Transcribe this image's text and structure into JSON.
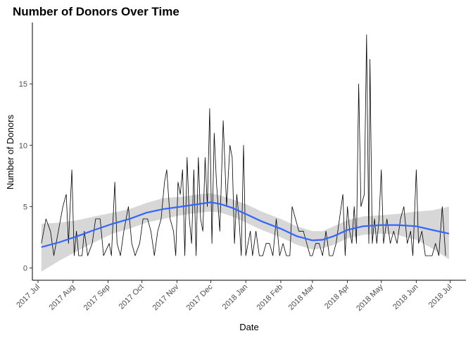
{
  "chart_data": {
    "type": "line",
    "title": "Number of Donors Over Time",
    "xlabel": "Date",
    "ylabel": "Number of Donors",
    "x_axis_type": "date",
    "xlim": [
      "2017-06-26",
      "2018-07-15"
    ],
    "ylim": [
      -1.0,
      20.0
    ],
    "grid": false,
    "x_ticks": [
      {
        "date": "2017-07-01",
        "label": "2017 Jul"
      },
      {
        "date": "2017-08-01",
        "label": "2017 Aug"
      },
      {
        "date": "2017-09-01",
        "label": "2017 Sep"
      },
      {
        "date": "2017-10-01",
        "label": "2017 Oct"
      },
      {
        "date": "2017-11-01",
        "label": "2017 Nov"
      },
      {
        "date": "2017-12-01",
        "label": "2017 Dec"
      },
      {
        "date": "2018-01-01",
        "label": "2018 Jan"
      },
      {
        "date": "2018-02-01",
        "label": "2018 Feb"
      },
      {
        "date": "2018-03-01",
        "label": "2018 Mar"
      },
      {
        "date": "2018-04-01",
        "label": "2018 Apr"
      },
      {
        "date": "2018-05-01",
        "label": "2018 May"
      },
      {
        "date": "2018-06-01",
        "label": "2018 Jun"
      },
      {
        "date": "2018-07-01",
        "label": "2018 Jul"
      }
    ],
    "y_ticks": [
      {
        "value": 0,
        "label": "0"
      },
      {
        "value": 5,
        "label": "5"
      },
      {
        "value": 10,
        "label": "10"
      },
      {
        "value": 15,
        "label": "15"
      }
    ],
    "series": [
      {
        "kind": "raw",
        "color": "#000000",
        "points": [
          [
            "2017-07-04",
            2
          ],
          [
            "2017-07-08",
            4
          ],
          [
            "2017-07-12",
            3
          ],
          [
            "2017-07-15",
            1
          ],
          [
            "2017-07-19",
            3
          ],
          [
            "2017-07-23",
            5
          ],
          [
            "2017-07-26",
            6
          ],
          [
            "2017-07-28",
            2
          ],
          [
            "2017-07-31",
            8
          ],
          [
            "2017-08-02",
            1
          ],
          [
            "2017-08-04",
            3
          ],
          [
            "2017-08-06",
            1
          ],
          [
            "2017-08-09",
            1
          ],
          [
            "2017-08-11",
            3
          ],
          [
            "2017-08-14",
            1
          ],
          [
            "2017-08-18",
            2
          ],
          [
            "2017-08-21",
            4
          ],
          [
            "2017-08-25",
            4
          ],
          [
            "2017-08-28",
            1
          ],
          [
            "2017-09-02",
            2
          ],
          [
            "2017-09-04",
            1
          ],
          [
            "2017-09-07",
            7
          ],
          [
            "2017-09-09",
            2
          ],
          [
            "2017-09-12",
            1
          ],
          [
            "2017-09-15",
            3
          ],
          [
            "2017-09-19",
            5
          ],
          [
            "2017-09-22",
            2
          ],
          [
            "2017-09-25",
            1
          ],
          [
            "2017-09-29",
            2
          ],
          [
            "2017-10-02",
            4
          ],
          [
            "2017-10-06",
            4
          ],
          [
            "2017-10-09",
            3
          ],
          [
            "2017-10-12",
            1
          ],
          [
            "2017-10-15",
            3
          ],
          [
            "2017-10-18",
            4
          ],
          [
            "2017-10-21",
            7
          ],
          [
            "2017-10-23",
            8
          ],
          [
            "2017-10-26",
            4
          ],
          [
            "2017-10-29",
            3
          ],
          [
            "2017-10-31",
            1
          ],
          [
            "2017-11-02",
            7
          ],
          [
            "2017-11-04",
            6
          ],
          [
            "2017-11-06",
            8
          ],
          [
            "2017-11-08",
            1
          ],
          [
            "2017-11-10",
            9
          ],
          [
            "2017-11-12",
            4
          ],
          [
            "2017-11-14",
            2
          ],
          [
            "2017-11-16",
            8
          ],
          [
            "2017-11-18",
            1
          ],
          [
            "2017-11-20",
            9
          ],
          [
            "2017-11-22",
            4
          ],
          [
            "2017-11-24",
            3
          ],
          [
            "2017-11-26",
            9
          ],
          [
            "2017-11-28",
            5
          ],
          [
            "2017-11-30",
            13
          ],
          [
            "2017-12-02",
            2
          ],
          [
            "2017-12-04",
            11
          ],
          [
            "2017-12-06",
            7
          ],
          [
            "2017-12-09",
            3
          ],
          [
            "2017-12-12",
            12
          ],
          [
            "2017-12-15",
            5
          ],
          [
            "2017-12-18",
            10
          ],
          [
            "2017-12-20",
            9
          ],
          [
            "2017-12-22",
            2
          ],
          [
            "2017-12-24",
            6
          ],
          [
            "2017-12-26",
            4
          ],
          [
            "2017-12-28",
            1
          ],
          [
            "2017-12-30",
            10
          ],
          [
            "2018-01-01",
            1
          ],
          [
            "2018-01-03",
            2
          ],
          [
            "2018-01-05",
            3
          ],
          [
            "2018-01-07",
            1
          ],
          [
            "2018-01-10",
            3
          ],
          [
            "2018-01-13",
            1
          ],
          [
            "2018-01-16",
            1
          ],
          [
            "2018-01-19",
            2
          ],
          [
            "2018-01-22",
            2
          ],
          [
            "2018-01-25",
            1
          ],
          [
            "2018-01-28",
            4
          ],
          [
            "2018-01-31",
            1
          ],
          [
            "2018-02-03",
            2
          ],
          [
            "2018-02-06",
            1
          ],
          [
            "2018-02-09",
            1
          ],
          [
            "2018-02-11",
            5
          ],
          [
            "2018-02-14",
            4
          ],
          [
            "2018-02-17",
            3
          ],
          [
            "2018-02-21",
            3
          ],
          [
            "2018-02-24",
            2
          ],
          [
            "2018-02-27",
            1
          ],
          [
            "2018-03-01",
            1
          ],
          [
            "2018-03-04",
            2
          ],
          [
            "2018-03-07",
            2
          ],
          [
            "2018-03-10",
            1
          ],
          [
            "2018-03-13",
            3
          ],
          [
            "2018-03-16",
            1
          ],
          [
            "2018-03-19",
            1
          ],
          [
            "2018-03-22",
            2
          ],
          [
            "2018-03-25",
            4
          ],
          [
            "2018-03-28",
            6
          ],
          [
            "2018-03-30",
            1
          ],
          [
            "2018-04-01",
            5
          ],
          [
            "2018-04-03",
            3
          ],
          [
            "2018-04-05",
            2
          ],
          [
            "2018-04-07",
            5
          ],
          [
            "2018-04-09",
            2
          ],
          [
            "2018-04-11",
            15
          ],
          [
            "2018-04-13",
            5
          ],
          [
            "2018-04-16",
            6
          ],
          [
            "2018-04-18",
            19
          ],
          [
            "2018-04-20",
            2
          ],
          [
            "2018-04-21",
            17
          ],
          [
            "2018-04-23",
            2
          ],
          [
            "2018-04-25",
            4
          ],
          [
            "2018-04-27",
            2
          ],
          [
            "2018-04-29",
            4
          ],
          [
            "2018-05-01",
            8
          ],
          [
            "2018-05-03",
            2
          ],
          [
            "2018-05-06",
            4
          ],
          [
            "2018-05-09",
            2
          ],
          [
            "2018-05-12",
            3
          ],
          [
            "2018-05-15",
            2
          ],
          [
            "2018-05-18",
            4
          ],
          [
            "2018-05-21",
            5
          ],
          [
            "2018-05-24",
            2
          ],
          [
            "2018-05-27",
            3
          ],
          [
            "2018-05-29",
            1
          ],
          [
            "2018-06-01",
            8
          ],
          [
            "2018-06-03",
            2
          ],
          [
            "2018-06-06",
            3
          ],
          [
            "2018-06-09",
            1
          ],
          [
            "2018-06-12",
            1
          ],
          [
            "2018-06-15",
            1
          ],
          [
            "2018-06-18",
            2
          ],
          [
            "2018-06-21",
            1
          ],
          [
            "2018-06-24",
            5
          ],
          [
            "2018-06-27",
            1
          ]
        ]
      },
      {
        "kind": "smooth",
        "color": "#3366ff",
        "points": [
          [
            "2017-07-04",
            1.7
          ],
          [
            "2017-07-20",
            2.1
          ],
          [
            "2017-08-05",
            2.6
          ],
          [
            "2017-08-20",
            3.1
          ],
          [
            "2017-09-05",
            3.6
          ],
          [
            "2017-09-20",
            4.0
          ],
          [
            "2017-10-05",
            4.5
          ],
          [
            "2017-10-20",
            4.8
          ],
          [
            "2017-11-05",
            5.0
          ],
          [
            "2017-11-20",
            5.2
          ],
          [
            "2017-12-01",
            5.35
          ],
          [
            "2017-12-10",
            5.2
          ],
          [
            "2017-12-20",
            4.9
          ],
          [
            "2018-01-01",
            4.4
          ],
          [
            "2018-01-15",
            3.8
          ],
          [
            "2018-02-01",
            3.2
          ],
          [
            "2018-02-15",
            2.6
          ],
          [
            "2018-03-01",
            2.25
          ],
          [
            "2018-03-10",
            2.3
          ],
          [
            "2018-03-20",
            2.6
          ],
          [
            "2018-04-01",
            3.1
          ],
          [
            "2018-04-15",
            3.4
          ],
          [
            "2018-05-01",
            3.5
          ],
          [
            "2018-05-15",
            3.5
          ],
          [
            "2018-06-01",
            3.4
          ],
          [
            "2018-06-15",
            3.1
          ],
          [
            "2018-06-30",
            2.8
          ]
        ]
      },
      {
        "kind": "confidence_band",
        "color": "#bdbdbd",
        "points": [
          [
            "2017-07-04",
            -0.3,
            3.6
          ],
          [
            "2017-07-20",
            0.6,
            3.7
          ],
          [
            "2017-08-05",
            1.4,
            3.9
          ],
          [
            "2017-08-20",
            2.1,
            4.2
          ],
          [
            "2017-09-05",
            2.8,
            4.5
          ],
          [
            "2017-09-20",
            3.2,
            4.8
          ],
          [
            "2017-10-05",
            3.7,
            5.3
          ],
          [
            "2017-10-20",
            4.0,
            5.7
          ],
          [
            "2017-11-05",
            4.3,
            5.8
          ],
          [
            "2017-11-20",
            4.5,
            6.0
          ],
          [
            "2017-12-01",
            4.6,
            6.1
          ],
          [
            "2017-12-10",
            4.5,
            5.9
          ],
          [
            "2017-12-20",
            4.2,
            5.6
          ],
          [
            "2018-01-01",
            3.7,
            5.2
          ],
          [
            "2018-01-15",
            3.1,
            4.6
          ],
          [
            "2018-02-01",
            2.5,
            4.0
          ],
          [
            "2018-02-15",
            1.9,
            3.4
          ],
          [
            "2018-03-01",
            1.5,
            3.0
          ],
          [
            "2018-03-10",
            1.6,
            3.0
          ],
          [
            "2018-03-20",
            1.9,
            3.4
          ],
          [
            "2018-04-01",
            2.4,
            3.9
          ],
          [
            "2018-04-15",
            2.7,
            4.2
          ],
          [
            "2018-05-01",
            2.8,
            4.3
          ],
          [
            "2018-05-15",
            2.7,
            4.4
          ],
          [
            "2018-06-01",
            2.3,
            4.6
          ],
          [
            "2018-06-15",
            1.6,
            4.7
          ],
          [
            "2018-06-30",
            0.7,
            5.0
          ]
        ]
      }
    ]
  }
}
